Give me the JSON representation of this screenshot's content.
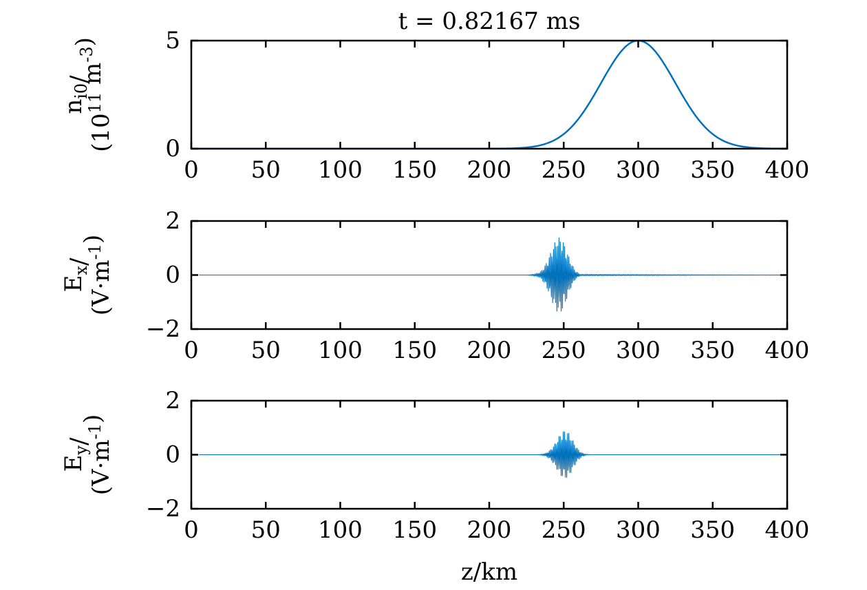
{
  "figure": {
    "title": "t = 0.82167 ms",
    "xlabel": "z/km",
    "line_color": "#0072bd"
  },
  "chart_data": [
    {
      "type": "line",
      "ylabel_line1": "n_i0/",
      "ylabel_line2": "(10^11 m^-3)",
      "xlim": [
        0,
        400
      ],
      "ylim": [
        0,
        5
      ],
      "x_ticks": [
        "0",
        "50",
        "100",
        "150",
        "200",
        "250",
        "300",
        "350",
        "400"
      ],
      "y_ticks": [
        "0",
        "5"
      ],
      "grid": false,
      "series": [
        {
          "x": [
            0,
            200,
            210,
            220,
            230,
            240,
            250,
            260,
            270,
            280,
            290,
            300,
            310,
            320,
            330,
            340,
            350,
            360,
            370,
            380,
            390,
            400
          ],
          "values": [
            0,
            0.01,
            0.03,
            0.07,
            0.17,
            0.35,
            0.69,
            1.2,
            1.95,
            2.95,
            4.15,
            5.0,
            4.15,
            2.95,
            1.95,
            1.2,
            0.69,
            0.35,
            0.17,
            0.07,
            0.03,
            0.01
          ]
        }
      ]
    },
    {
      "type": "line",
      "ylabel_line1": "E_x/",
      "ylabel_line2": "(V·m^-1)",
      "xlim": [
        0,
        400
      ],
      "ylim": [
        -2,
        2
      ],
      "x_ticks": [
        "0",
        "50",
        "100",
        "150",
        "200",
        "250",
        "300",
        "350",
        "400"
      ],
      "y_ticks": [
        "-2",
        "0",
        "2"
      ],
      "grid": false,
      "series": [
        {
          "x": [
            5,
            225,
            228,
            231,
            234,
            237,
            240,
            243,
            246,
            249,
            252,
            255,
            258,
            261,
            400
          ],
          "values": [
            0,
            0,
            0.02,
            0.05,
            0.1,
            0.3,
            0.65,
            1.1,
            1.4,
            1.35,
            0.9,
            0.45,
            0.15,
            0.03,
            0
          ],
          "envelope": true
        }
      ]
    },
    {
      "type": "line",
      "ylabel_line1": "E_y/",
      "ylabel_line2": "(V·m^-1)",
      "xlim": [
        0,
        400
      ],
      "ylim": [
        -2,
        2
      ],
      "x_ticks": [
        "0",
        "50",
        "100",
        "150",
        "200",
        "250",
        "300",
        "350",
        "400"
      ],
      "y_ticks": [
        "-2",
        "0",
        "2"
      ],
      "grid": false,
      "series": [
        {
          "x": [
            5,
            232,
            235,
            238,
            241,
            244,
            247,
            250,
            253,
            256,
            259,
            262,
            265,
            268,
            400
          ],
          "values": [
            0,
            0,
            0.02,
            0.06,
            0.18,
            0.4,
            0.7,
            0.9,
            0.85,
            0.55,
            0.25,
            0.08,
            0.02,
            0,
            0
          ],
          "envelope": true
        }
      ]
    }
  ]
}
